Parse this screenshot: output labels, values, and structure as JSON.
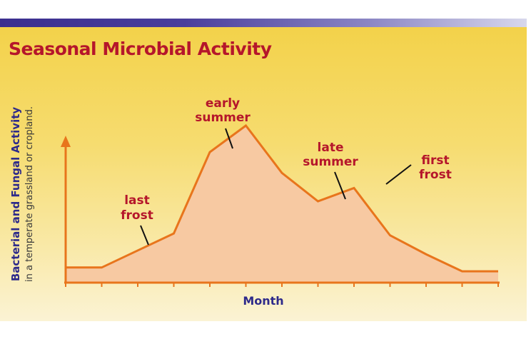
{
  "chart_data": {
    "type": "area",
    "title": "Seasonal Microbial Activity",
    "xlabel": "Month",
    "ylabel": "Bacterial and Fungal Activity",
    "ylabel_sub": "in a temperate grassland or cropland.",
    "x": [
      0,
      1,
      2,
      3,
      4,
      5,
      6,
      7,
      8,
      9,
      10,
      11,
      12
    ],
    "values": [
      8,
      8,
      17,
      26,
      69,
      83,
      58,
      43,
      50,
      25,
      15,
      6,
      6
    ],
    "annotations": [
      {
        "text": "last frost",
        "lines": [
          "last",
          "frost"
        ]
      },
      {
        "text": "early summer",
        "lines": [
          "early",
          "summer"
        ]
      },
      {
        "text": "late summer",
        "lines": [
          "late",
          "summer"
        ]
      },
      {
        "text": "first frost",
        "lines": [
          "first",
          "frost"
        ]
      }
    ],
    "colors": {
      "line": "#e8751c",
      "fill": "#f7c9a2",
      "title": "#b5162b",
      "axis_label": "#2e2a8a"
    }
  }
}
